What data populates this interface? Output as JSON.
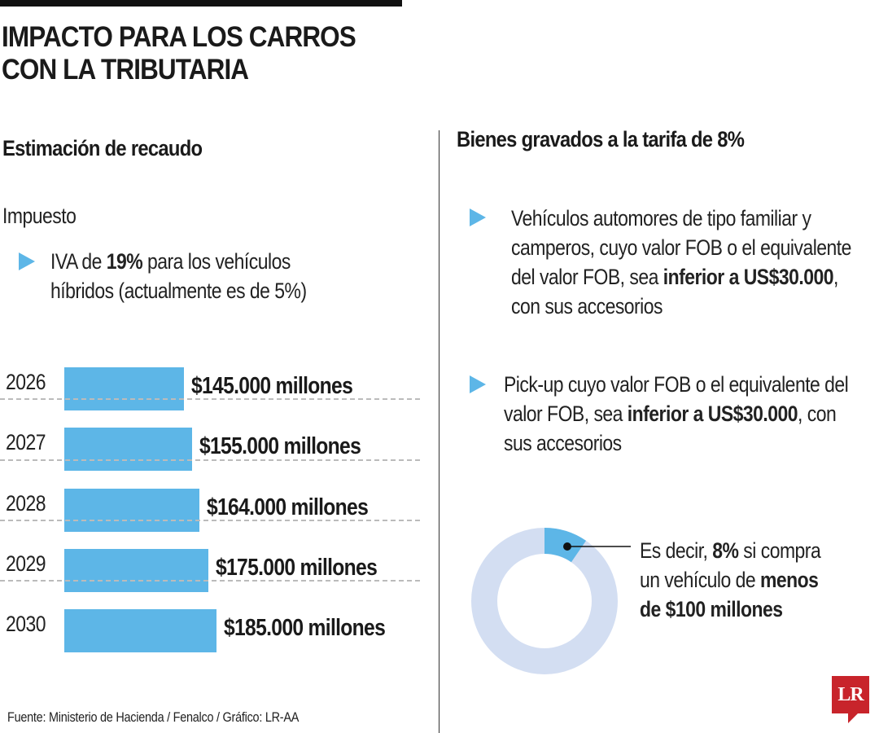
{
  "title_lines": [
    "IMPACTO PARA LOS CARROS",
    "CON LA TRIBUTARIA"
  ],
  "left": {
    "subtitle": "Estimación de recaudo",
    "label": "Impuesto",
    "bullet": {
      "pre": "IVA de ",
      "bold": "19%",
      "post": " para los vehículos",
      "line2": "híbridos (actualmente es de 5%)"
    }
  },
  "chart_data": {
    "type": "bar",
    "orientation": "horizontal",
    "title": "Estimación de recaudo",
    "categories": [
      "2026",
      "2027",
      "2028",
      "2029",
      "2030"
    ],
    "values": [
      145000,
      155000,
      164000,
      175000,
      185000
    ],
    "unit": "millones de pesos",
    "data_labels": [
      "$145.000 millones",
      "$155.000 millones",
      "$164.000 millones",
      "$175.000 millones",
      "$185.000 millones"
    ],
    "bar_color": "#5db6e7",
    "grid": "dashed separators between rows"
  },
  "right": {
    "subtitle": "Bienes gravados a la tarifa de 8%",
    "bullets": [
      {
        "lines": [
          "Vehículos automores de tipo familiar y",
          "camperos, cuyo valor FOB o el equivalente"
        ],
        "pre": "del valor FOB, sea ",
        "bold": "inferior a US$30.000",
        "post": ",",
        "last": "con sus accesorios"
      },
      {
        "lines": [
          "Pick-up cuyo valor FOB o el equivalente del"
        ],
        "pre": "valor FOB, sea ",
        "bold": "inferior a US$30.000",
        "post": ", con",
        "last": "sus accesorios"
      }
    ],
    "donut": {
      "percent": 8,
      "highlight_color": "#5db6e7",
      "rest_color": "#d3def2"
    },
    "donut_text": {
      "l1_pre": "Es decir, ",
      "l1_bold": "8%",
      "l1_post": " si compra",
      "l2_pre": "un vehículo de ",
      "l2_bold": "menos",
      "l3_bold": "de $100 millones"
    }
  },
  "source": "Fuente: Ministerio de Hacienda / Fenalco / Gráfico: LR-AA",
  "logo": "LR",
  "colors": {
    "accent": "#5db6e7",
    "logo": "#c8242b"
  }
}
